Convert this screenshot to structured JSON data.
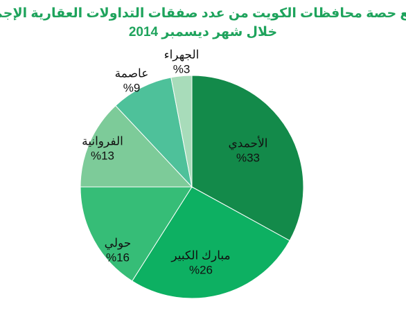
{
  "chart_data": {
    "type": "pie",
    "title": "توزيع حصة محافظات الكويت من عدد صفقات التداولات العقارية الإجمالية",
    "subtitle": "خلال شهر  ديسمبر 2014",
    "categories": [
      "الأحمدي",
      "مبارك الكبير",
      "حولي",
      "الفروانية",
      "عاصمة",
      "الجهراء"
    ],
    "values": [
      33,
      26,
      16,
      13,
      9,
      3
    ],
    "value_labels": [
      "%33",
      "%26",
      "%16",
      "%13",
      "%9",
      "%3"
    ],
    "colors": [
      "#138a4a",
      "#0db062",
      "#36bd77",
      "#7dcb99",
      "#4ec19a",
      "#a8dcba"
    ]
  }
}
